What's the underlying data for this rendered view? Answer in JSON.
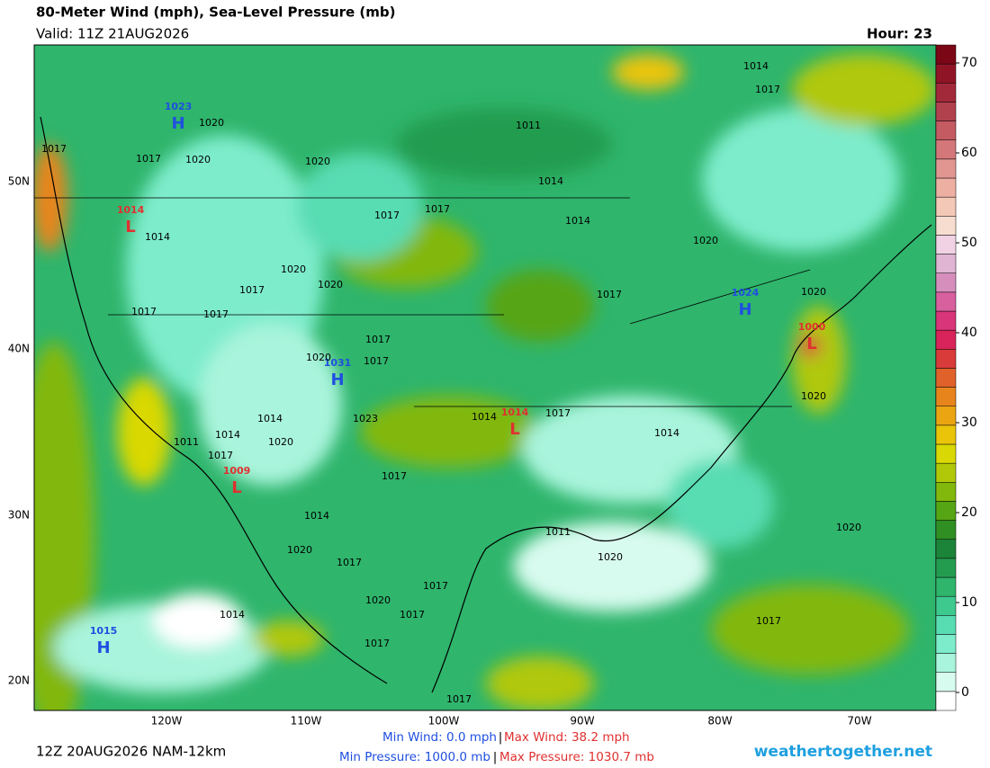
{
  "header": {
    "title": "80-Meter Wind (mph), Sea-Level Pressure (mb)",
    "valid": "Valid: 11Z 21AUG2026",
    "hour": "Hour: 23"
  },
  "map": {
    "lat_labels": [
      "50N",
      "40N",
      "30N",
      "20N"
    ],
    "lon_labels": [
      "120W",
      "110W",
      "100W",
      "90W",
      "80W",
      "70W"
    ],
    "pressure_centers": [
      {
        "letter": "H",
        "value": 1023,
        "color": "#1f4fe0"
      },
      {
        "letter": "L",
        "value": 1014,
        "color": "#e03030"
      },
      {
        "letter": "H",
        "value": 1031,
        "color": "#1f4fe0"
      },
      {
        "letter": "L",
        "value": 1014,
        "color": "#e03030"
      },
      {
        "letter": "L",
        "value": 1009,
        "color": "#e03030"
      },
      {
        "letter": "H",
        "value": 1024,
        "color": "#1f4fe0"
      },
      {
        "letter": "L",
        "value": 1000,
        "color": "#e03030"
      },
      {
        "letter": "H",
        "value": 1015,
        "color": "#1f4fe0"
      }
    ],
    "isobar_labels": [
      1014,
      1017,
      1020,
      1017,
      1020,
      1017,
      1011,
      1014,
      1020,
      1017,
      1014,
      1014,
      1020,
      1017,
      1017,
      1020,
      1017,
      1017,
      1017,
      1020,
      1020,
      1020,
      1017,
      1017,
      1020,
      1014,
      1014,
      1011,
      1017,
      1023,
      1017,
      1014,
      1014,
      1017,
      1020,
      1017,
      1017,
      1020,
      1020,
      1017,
      1014,
      1020,
      1014,
      1017,
      1020,
      1011,
      1017,
      1017
    ]
  },
  "colorbar": {
    "lim": [
      -2,
      72
    ],
    "ticks": [
      0,
      10,
      20,
      30,
      40,
      50,
      60,
      70
    ],
    "colors": [
      "#ffffff",
      "#d8fbef",
      "#a9f4dc",
      "#7deccb",
      "#58dcb2",
      "#3ec98f",
      "#2fb56c",
      "#249c4f",
      "#1c8438",
      "#2f8f23",
      "#56a514",
      "#82b80c",
      "#b0c807",
      "#d9d804",
      "#e9c408",
      "#eba512",
      "#e7851c",
      "#e0612a",
      "#d93a3a",
      "#d8245a",
      "#d9357a",
      "#d8609f",
      "#d68fbd",
      "#e0b4d3",
      "#f0d2e4",
      "#f6ddd0",
      "#f4c8b6",
      "#eeafa3",
      "#e19692",
      "#d4777a",
      "#c45a62",
      "#b2414e",
      "#a2293a",
      "#8f1426",
      "#7a0616"
    ]
  },
  "footer": {
    "run": "12Z 20AUG2026 NAM-12km",
    "min_wind": "Min Wind:   0.0 mph",
    "max_wind": "Max Wind:  38.2 mph",
    "min_pressure": "Min Pressure: 1000.0 mb",
    "max_pressure": "Max Pressure: 1030.7 mb",
    "site": "weathertogether.net"
  }
}
